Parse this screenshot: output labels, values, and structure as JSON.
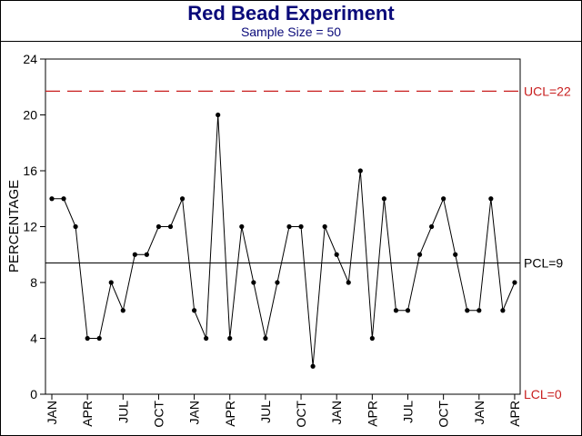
{
  "chart_data": {
    "type": "line",
    "title": "Red Bead Experiment",
    "subtitle": "Sample Size = 50",
    "ylabel": "PERCENTAGE",
    "xlabel": "",
    "ylim": [
      0,
      24
    ],
    "yticks": [
      0,
      4,
      8,
      12,
      16,
      20,
      24
    ],
    "x_tick_labels": [
      "JAN",
      "APR",
      "JUL",
      "OCT",
      "JAN",
      "APR",
      "JUL",
      "OCT",
      "JAN",
      "APR",
      "JUL",
      "OCT",
      "JAN",
      "APR"
    ],
    "series": [
      {
        "values": [
          14,
          14,
          12,
          4,
          4,
          8,
          6,
          10,
          10,
          12,
          12,
          14,
          6,
          4,
          20,
          4,
          12,
          8,
          4,
          8,
          12,
          12,
          2,
          12,
          10,
          8,
          16,
          4,
          14,
          6,
          6,
          10,
          12,
          14,
          10,
          6,
          6,
          14,
          6,
          8
        ]
      }
    ],
    "control_limits": {
      "ucl": {
        "label": "UCL=22",
        "value": 21.7,
        "color": "#c81e1e"
      },
      "pcl": {
        "label": "PCL=9",
        "value": 9.4,
        "color": "#000000"
      },
      "lcl": {
        "label": "LCL=0",
        "value": 0,
        "color": "#c81e1e"
      }
    },
    "grid": false,
    "legend": "none"
  }
}
